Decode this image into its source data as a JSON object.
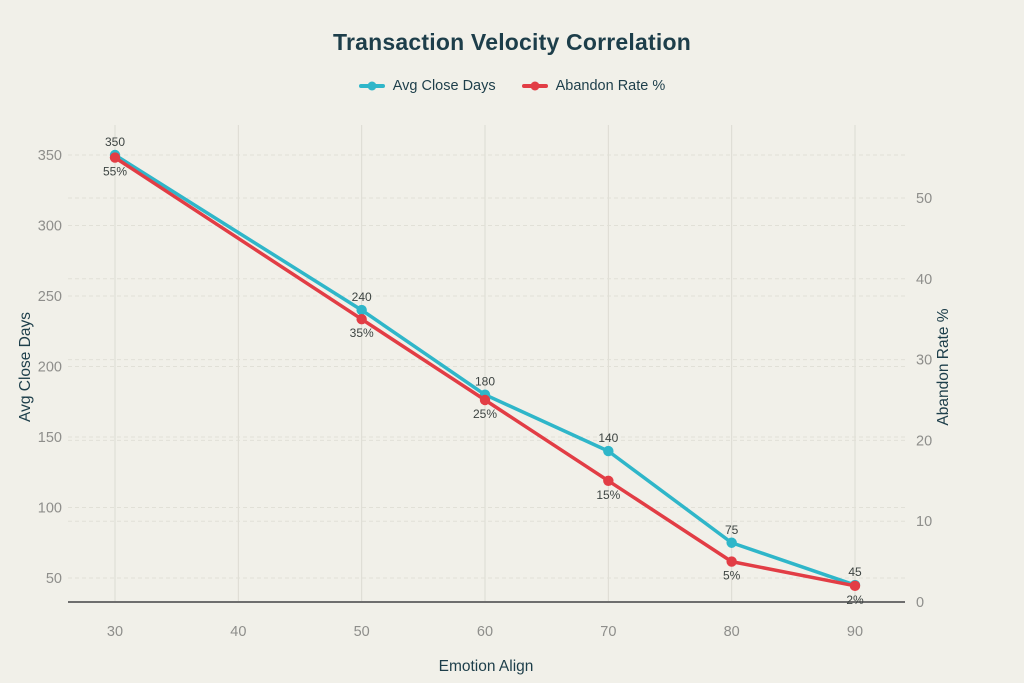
{
  "title": "Transaction Velocity Correlation",
  "legend": [
    {
      "label": "Avg Close Days",
      "color": "#2fb6c9"
    },
    {
      "label": "Abandon Rate %",
      "color": "#e23d45"
    }
  ],
  "chart_data": {
    "type": "line",
    "title": "Transaction Velocity Correlation",
    "xlabel": "Emotion Align",
    "x": [
      30,
      50,
      60,
      70,
      80,
      90
    ],
    "x_ticks": [
      30,
      40,
      50,
      60,
      70,
      80,
      90
    ],
    "series": [
      {
        "name": "Avg Close Days",
        "axis": "left",
        "color": "#2fb6c9",
        "values": [
          350,
          240,
          180,
          140,
          75,
          45
        ],
        "labels": [
          "350",
          "240",
          "180",
          "140",
          "75",
          "45"
        ],
        "label_position": "top"
      },
      {
        "name": "Abandon Rate %",
        "axis": "right",
        "color": "#e23d45",
        "values": [
          55,
          35,
          25,
          15,
          5,
          2
        ],
        "labels": [
          "55%",
          "35%",
          "25%",
          "15%",
          "5%",
          "2%"
        ],
        "label_position": "bottom"
      }
    ],
    "left_axis": {
      "label": "Avg Close Days",
      "ticks": [
        50,
        100,
        150,
        200,
        250,
        300,
        350
      ],
      "range": [
        50,
        350
      ]
    },
    "right_axis": {
      "label": "Abandon Rate %",
      "ticks": [
        0,
        10,
        20,
        30,
        40,
        50
      ],
      "range": [
        0,
        50
      ]
    },
    "grid": true,
    "legend_position": "top"
  },
  "colors": {
    "background": "#f1f0e9",
    "title_text": "#1d3e4a",
    "tick_text": "#8e8e8b",
    "axis_line": "#6e6e6e",
    "grid_vertical": "#dcdbd2",
    "grid_horizontal": "#e1e0d7",
    "data_label_text": "#3d4442"
  }
}
